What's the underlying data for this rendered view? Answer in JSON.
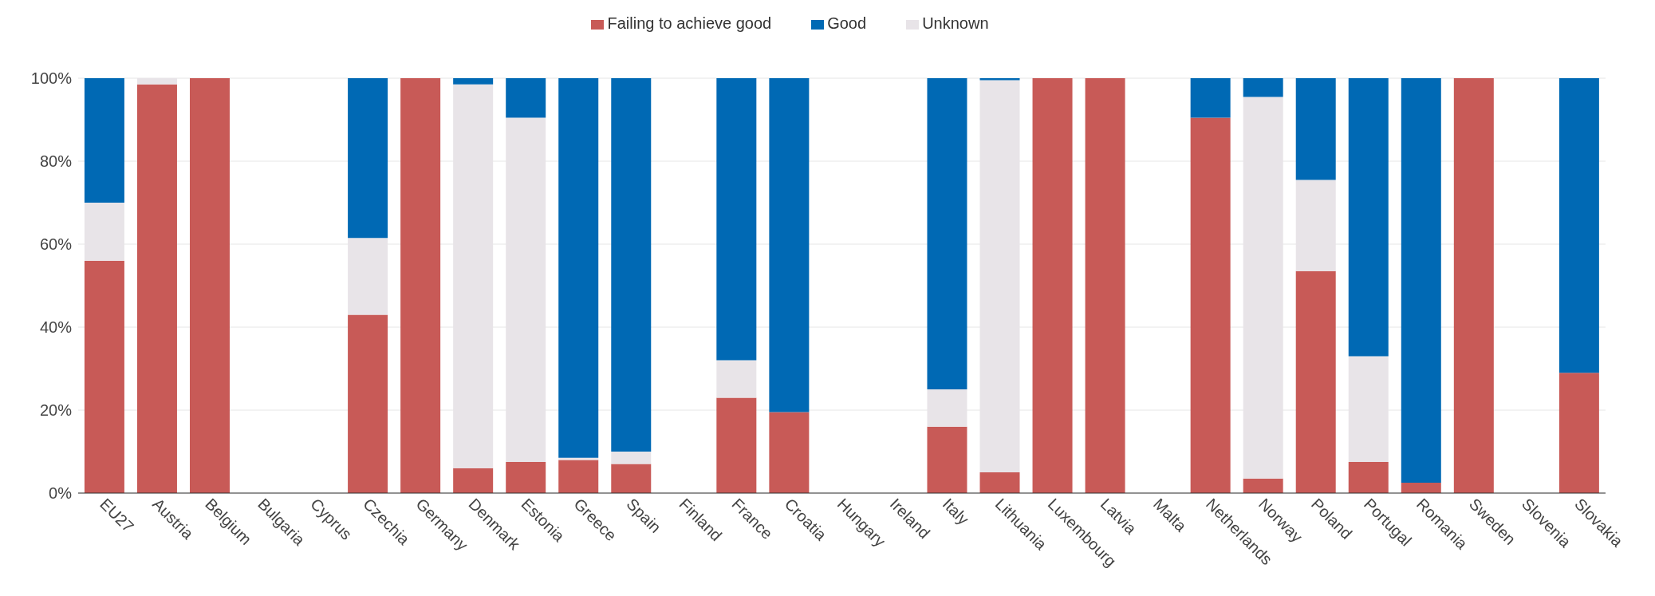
{
  "chart_data": {
    "type": "bar",
    "stacked": true,
    "legend": "top",
    "grid": "y",
    "categories": [
      "EU27",
      "Austria",
      "Belgium",
      "Bulgaria",
      "Cyprus",
      "Czechia",
      "Germany",
      "Denmark",
      "Estonia",
      "Greece",
      "Spain",
      "Finland",
      "France",
      "Croatia",
      "Hungary",
      "Ireland",
      "Italy",
      "Lithuania",
      "Luxembourg",
      "Latvia",
      "Malta",
      "Netherlands",
      "Norway",
      "Poland",
      "Portugal",
      "Romania",
      "Sweden",
      "Slovenia",
      "Slovakia"
    ],
    "ylim": [
      0,
      100
    ],
    "yticks": [
      {
        "value": 0,
        "label": "0%"
      },
      {
        "value": 20,
        "label": "20%"
      },
      {
        "value": 40,
        "label": "40%"
      },
      {
        "value": 60,
        "label": "60%"
      },
      {
        "value": 80,
        "label": "80%"
      },
      {
        "value": 100,
        "label": "100%"
      }
    ],
    "series": [
      {
        "name": "Failing to achieve good",
        "color": "#c85a57",
        "values": [
          56,
          98.5,
          100,
          null,
          null,
          43,
          100,
          6,
          7.5,
          8,
          7,
          null,
          23,
          19.5,
          null,
          null,
          16,
          5,
          100,
          100,
          null,
          90.5,
          3.5,
          53.5,
          7.5,
          2.5,
          100,
          null,
          29
        ]
      },
      {
        "name": "Unknown",
        "color": "#e8e4e8",
        "values": [
          14,
          1.5,
          0,
          null,
          null,
          18.5,
          0,
          92.5,
          83,
          0.5,
          3,
          null,
          9,
          0,
          null,
          null,
          9,
          94.5,
          0,
          0,
          null,
          0,
          92,
          22,
          25.5,
          0,
          0,
          null,
          0
        ]
      },
      {
        "name": "Good",
        "color": "#0069b4",
        "values": [
          30,
          0,
          0,
          null,
          null,
          38.5,
          0,
          1.5,
          9.5,
          91.5,
          90,
          null,
          68,
          80.5,
          null,
          null,
          75,
          0.5,
          0,
          0,
          null,
          9.5,
          4.5,
          24.5,
          67,
          97.5,
          0,
          null,
          71
        ]
      }
    ]
  }
}
